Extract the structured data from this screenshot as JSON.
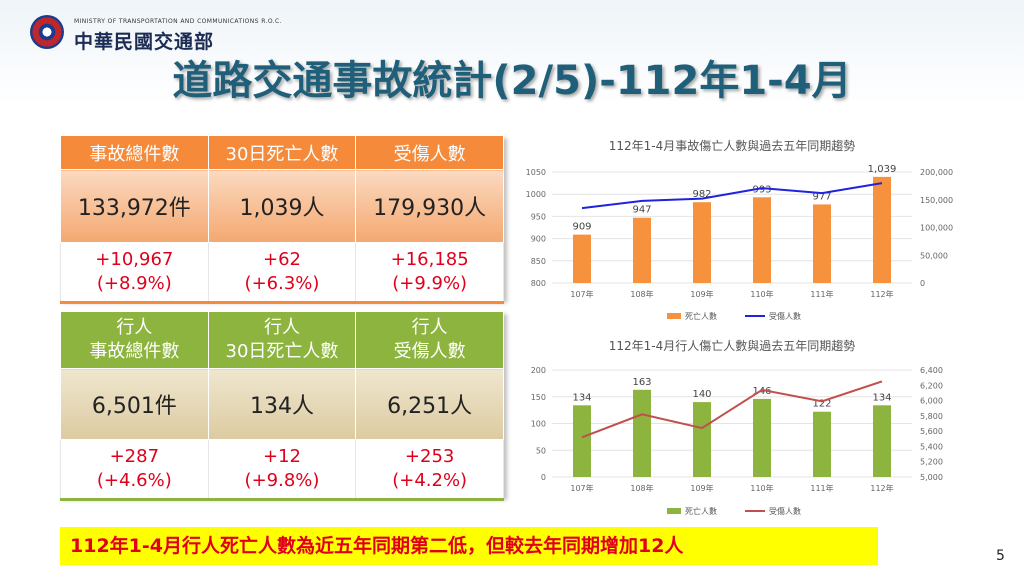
{
  "logo": {
    "english": "MINISTRY OF TRANSPORTATION AND COMMUNICATIONS R.O.C.",
    "chinese": "中華民國交通部"
  },
  "title": "道路交通事故統計(2/5)-112年1-4月",
  "overall_table": {
    "headers": [
      "事故總件數",
      "30日死亡人數",
      "受傷人數"
    ],
    "values": [
      "133,972件",
      "1,039人",
      "179,930人"
    ],
    "changes": [
      {
        "abs": "+10,967",
        "pct": "(+8.9%)"
      },
      {
        "abs": "+62",
        "pct": "(+6.3%)"
      },
      {
        "abs": "+16,185",
        "pct": "(+9.9%)"
      }
    ]
  },
  "pedestrian_table": {
    "headers": [
      {
        "line1": "行人",
        "line2": "事故總件數"
      },
      {
        "line1": "行人",
        "line2": "30日死亡人數"
      },
      {
        "line1": "行人",
        "line2": "受傷人數"
      }
    ],
    "values": [
      "6,501件",
      "134人",
      "6,251人"
    ],
    "changes": [
      {
        "abs": "+287",
        "pct": "(+4.6%)"
      },
      {
        "abs": "+12",
        "pct": "(+9.8%)"
      },
      {
        "abs": "+253",
        "pct": "(+4.2%)"
      }
    ]
  },
  "chart_data": [
    {
      "type": "bar",
      "title": "112年1-4月事故傷亡人數與過去五年同期趨勢",
      "categories": [
        "107年",
        "108年",
        "109年",
        "110年",
        "111年",
        "112年"
      ],
      "series": [
        {
          "name": "死亡人數",
          "kind": "bar",
          "axis": "left",
          "color": "#f6923d",
          "values": [
            909,
            947,
            982,
            993,
            977,
            1039
          ]
        },
        {
          "name": "受傷人數",
          "kind": "line",
          "axis": "right",
          "color": "#1f22e0",
          "values": [
            135000,
            148000,
            152000,
            171000,
            162000,
            179930
          ]
        }
      ],
      "left_axis": {
        "ylim": [
          800,
          1050
        ],
        "ticks": [
          "800",
          "850",
          "900",
          "950",
          "1000",
          "1050"
        ]
      },
      "right_axis": {
        "ylim": [
          0,
          200000
        ],
        "ticks": [
          "0",
          "50,000",
          "100,000",
          "150,000",
          "200,000"
        ]
      },
      "data_labels": [
        "909",
        "947",
        "982",
        "993",
        "977",
        "1,039"
      ],
      "legend_position": "bottom"
    },
    {
      "type": "bar",
      "title": "112年1-4月行人傷亡人數與過去五年同期趨勢",
      "categories": [
        "107年",
        "108年",
        "109年",
        "110年",
        "111年",
        "112年"
      ],
      "series": [
        {
          "name": "死亡人數",
          "kind": "bar",
          "axis": "left",
          "color": "#8db43e",
          "values": [
            134,
            163,
            140,
            146,
            122,
            134
          ]
        },
        {
          "name": "受傷人數",
          "kind": "line",
          "axis": "right",
          "color": "#c0504d",
          "values": [
            5520,
            5820,
            5640,
            6140,
            5990,
            6251
          ]
        }
      ],
      "left_axis": {
        "ylim": [
          0,
          200
        ],
        "ticks": [
          "0",
          "50",
          "100",
          "150",
          "200"
        ]
      },
      "right_axis": {
        "ylim": [
          5000,
          6400
        ],
        "ticks": [
          "5,000",
          "5,200",
          "5,400",
          "5,600",
          "5,800",
          "6,000",
          "6,200",
          "6,400"
        ]
      },
      "data_labels": [
        "134",
        "163",
        "140",
        "146",
        "122",
        "134"
      ],
      "legend_position": "bottom"
    }
  ],
  "conclusion": "112年1-4月行人死亡人數為近五年同期第二低，但較去年同期增加12人",
  "page_number": "5"
}
